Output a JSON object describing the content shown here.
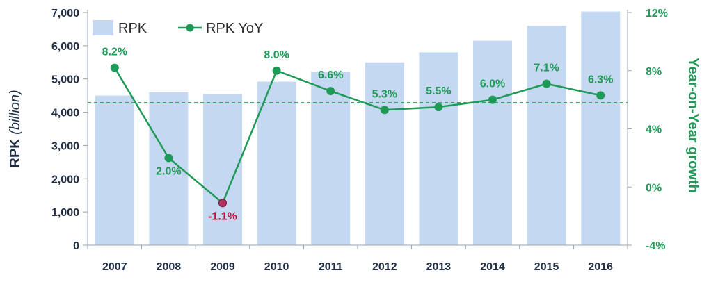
{
  "chart_data": {
    "type": "bar",
    "categories": [
      "2007",
      "2008",
      "2009",
      "2010",
      "2011",
      "2012",
      "2013",
      "2014",
      "2015",
      "2016"
    ],
    "series": [
      {
        "name": "RPK",
        "axis": "left",
        "kind": "bar",
        "color": "#c5d8f1",
        "values": [
          4500,
          4600,
          4550,
          4920,
          5220,
          5500,
          5800,
          6150,
          6600,
          7030
        ]
      },
      {
        "name": "RPK YoY",
        "axis": "right",
        "kind": "line",
        "color": "#1e9a56",
        "values": [
          8.2,
          2.0,
          -1.1,
          8.0,
          6.6,
          5.3,
          5.5,
          6.0,
          7.1,
          6.3
        ],
        "labels": [
          "8.2%",
          "2.0%",
          "-1.1%",
          "8.0%",
          "6.6%",
          "5.3%",
          "5.5%",
          "6.0%",
          "7.1%",
          "6.3%"
        ],
        "negative_label_color": "#c0143c"
      }
    ],
    "reference_line": {
      "axis": "right",
      "value": 5.8,
      "style": "dashed",
      "color": "#1e9a56"
    },
    "ylabel": "RPK",
    "ylabel_unit": "(billion)",
    "y2label": "Year-on-Year growth",
    "ylim": [
      0,
      7000
    ],
    "y2lim": [
      -4,
      12
    ],
    "yticks": [
      "0",
      "1,000",
      "2,000",
      "3,000",
      "4,000",
      "5,000",
      "6,000",
      "7,000"
    ],
    "y2ticks": [
      "-4%",
      "0%",
      "4%",
      "8%",
      "12%"
    ],
    "legend": {
      "position": "top-left",
      "items": [
        "RPK",
        "RPK YoY"
      ]
    },
    "grid": false
  }
}
